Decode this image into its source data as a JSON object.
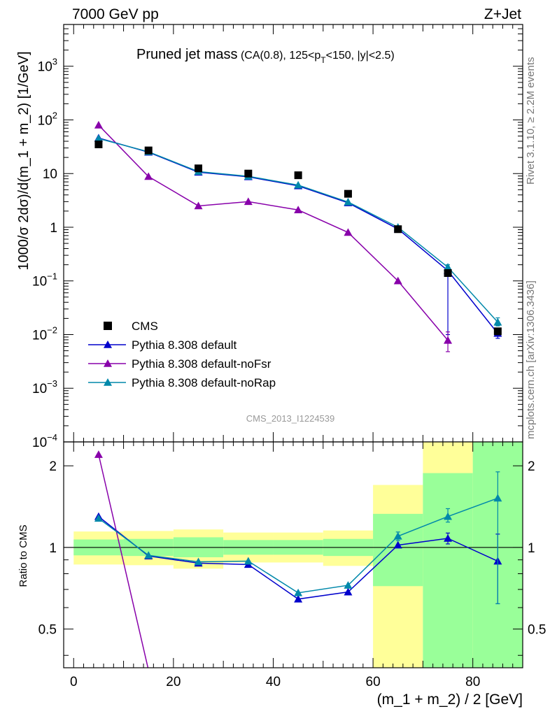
{
  "header": {
    "left": "7000 GeV pp",
    "right": "Z+Jet"
  },
  "side_labels": {
    "rivet": "Rivet 3.1.10, ≥ 2.2M events",
    "mcplots": "mcplots.cern.ch [arXiv:1306.3436]"
  },
  "chart_data": [
    {
      "type": "line",
      "panel": "main",
      "title": "Pruned jet mass",
      "subtitle": "(CA(0.8), 125<p_T<150, |y|<2.5)",
      "watermark": "CMS_2013_I1224539",
      "ylabel": "1000/σ 2dσ)/d(m_1 + m_2) [1/GeV]",
      "yscale": "log",
      "xlim": [
        -2,
        90
      ],
      "ylim": [
        0.0001,
        6000
      ],
      "ytick_labels": [
        {
          "value": 1000,
          "base": "10",
          "exp": "3"
        },
        {
          "value": 100,
          "base": "10",
          "exp": "2"
        },
        {
          "value": 10,
          "base": "10",
          "exp": ""
        },
        {
          "value": 1,
          "base": "1",
          "exp": ""
        },
        {
          "value": 0.1,
          "base": "10",
          "exp": "−1"
        },
        {
          "value": 0.01,
          "base": "10",
          "exp": "−2"
        },
        {
          "value": 0.001,
          "base": "10",
          "exp": "−3"
        },
        {
          "value": 0.0001,
          "base": "10",
          "exp": "−4"
        }
      ],
      "legend_position": "bottom-left",
      "series": [
        {
          "name": "CMS",
          "style": "marker",
          "marker": "square",
          "color": "#000000",
          "x": [
            5,
            15,
            25,
            35,
            45,
            55,
            65,
            75,
            85
          ],
          "y": [
            35,
            27,
            12.5,
            10,
            9.3,
            4.2,
            0.92,
            0.14,
            0.0115
          ]
        },
        {
          "name": "Pythia 8.308 default",
          "style": "line",
          "marker": "triangle",
          "color": "#0000cc",
          "x": [
            5,
            15,
            25,
            35,
            45,
            55,
            65,
            75,
            85
          ],
          "y": [
            46,
            25,
            10.6,
            8.7,
            5.9,
            2.85,
            0.93,
            0.155,
            0.0105
          ],
          "err_low": [
            0,
            0,
            0,
            0,
            0,
            0,
            0,
            0.01,
            0.0085
          ],
          "err_high": [
            0,
            0,
            0,
            0,
            0,
            0,
            0,
            0.18,
            0.0125
          ]
        },
        {
          "name": "Pythia 8.308 default-noFsr",
          "style": "line",
          "marker": "triangle",
          "color": "#8800aa",
          "x": [
            5,
            15,
            25,
            35,
            45,
            55,
            65,
            75
          ],
          "y": [
            80,
            8.8,
            2.5,
            3.0,
            2.1,
            0.8,
            0.1,
            0.0078
          ],
          "err_low": [
            0,
            0,
            0,
            0,
            0,
            0,
            0,
            0.0048
          ],
          "err_high": [
            0,
            0,
            0,
            0,
            0,
            0,
            0,
            0.0112
          ]
        },
        {
          "name": "Pythia 8.308 default-noRap",
          "style": "line",
          "marker": "triangle",
          "color": "#0088aa",
          "x": [
            5,
            15,
            25,
            35,
            45,
            55,
            65,
            75,
            85
          ],
          "y": [
            45,
            25.5,
            10.9,
            8.9,
            6.1,
            2.95,
            1.0,
            0.18,
            0.017
          ],
          "err_low": [
            0,
            0,
            0,
            0,
            0,
            0,
            0,
            0.16,
            0.0145
          ],
          "err_high": [
            0,
            0,
            0,
            0,
            0,
            0,
            0,
            0.2,
            0.0205
          ]
        }
      ]
    },
    {
      "type": "line",
      "panel": "ratio",
      "ylabel": "Ratio to CMS",
      "xlabel": "(m_1 + m_2) / 2 [GeV]",
      "yscale": "log",
      "xlim": [
        -2,
        90
      ],
      "ylim": [
        0.36,
        2.45
      ],
      "xticks": [
        0,
        20,
        40,
        60,
        80
      ],
      "yticks": [
        0.5,
        1,
        2
      ],
      "ytick_labels": [
        "0.5",
        "1",
        "2"
      ],
      "bands": [
        {
          "x0": 0,
          "x1": 10,
          "green": [
            0.935,
            1.07
          ],
          "yellow": [
            0.865,
            1.145
          ]
        },
        {
          "x0": 10,
          "x1": 20,
          "green": [
            0.93,
            1.075
          ],
          "yellow": [
            0.86,
            1.15
          ]
        },
        {
          "x0": 20,
          "x1": 30,
          "green": [
            0.92,
            1.09
          ],
          "yellow": [
            0.835,
            1.165
          ]
        },
        {
          "x0": 30,
          "x1": 40,
          "green": [
            0.94,
            1.065
          ],
          "yellow": [
            0.88,
            1.135
          ]
        },
        {
          "x0": 40,
          "x1": 50,
          "green": [
            0.94,
            1.065
          ],
          "yellow": [
            0.88,
            1.135
          ]
        },
        {
          "x0": 50,
          "x1": 60,
          "green": [
            0.93,
            1.075
          ],
          "yellow": [
            0.855,
            1.155
          ]
        },
        {
          "x0": 60,
          "x1": 70,
          "green": [
            0.72,
            1.33
          ],
          "yellow": [
            0.35,
            1.7
          ]
        },
        {
          "x0": 70,
          "x1": 80,
          "green": [
            0.35,
            1.88
          ],
          "yellow": [
            0.35,
            2.5
          ]
        },
        {
          "x0": 80,
          "x1": 90,
          "green": [
            0.35,
            2.5
          ],
          "yellow": [
            0.35,
            2.5
          ]
        }
      ],
      "series": [
        {
          "name": "Pythia 8.308 default",
          "color": "#0000cc",
          "x": [
            5,
            15,
            25,
            35,
            45,
            55,
            65,
            75,
            85
          ],
          "y": [
            1.3,
            0.93,
            0.875,
            0.865,
            0.645,
            0.685,
            1.02,
            1.08,
            0.89
          ],
          "err_low": [
            0,
            0,
            0,
            0,
            0,
            0,
            0,
            1.03,
            0.62
          ],
          "err_high": [
            0,
            0,
            0,
            0,
            0,
            0,
            0,
            1.13,
            1.12
          ]
        },
        {
          "name": "Pythia 8.308 default-noFsr",
          "color": "#8800aa",
          "x": [
            5,
            15
          ],
          "y": [
            2.2,
            0.32
          ]
        },
        {
          "name": "Pythia 8.308 default-noRap",
          "color": "#0088aa",
          "x": [
            5,
            15,
            25,
            35,
            45,
            55,
            65,
            75,
            85
          ],
          "y": [
            1.28,
            0.935,
            0.885,
            0.89,
            0.68,
            0.725,
            1.1,
            1.3,
            1.52
          ],
          "err_low": [
            0,
            0,
            0,
            0,
            0,
            0,
            1.06,
            1.24,
            0.62
          ],
          "err_high": [
            0,
            0,
            0,
            0,
            0,
            0,
            1.14,
            1.39,
            1.9
          ]
        }
      ]
    }
  ]
}
